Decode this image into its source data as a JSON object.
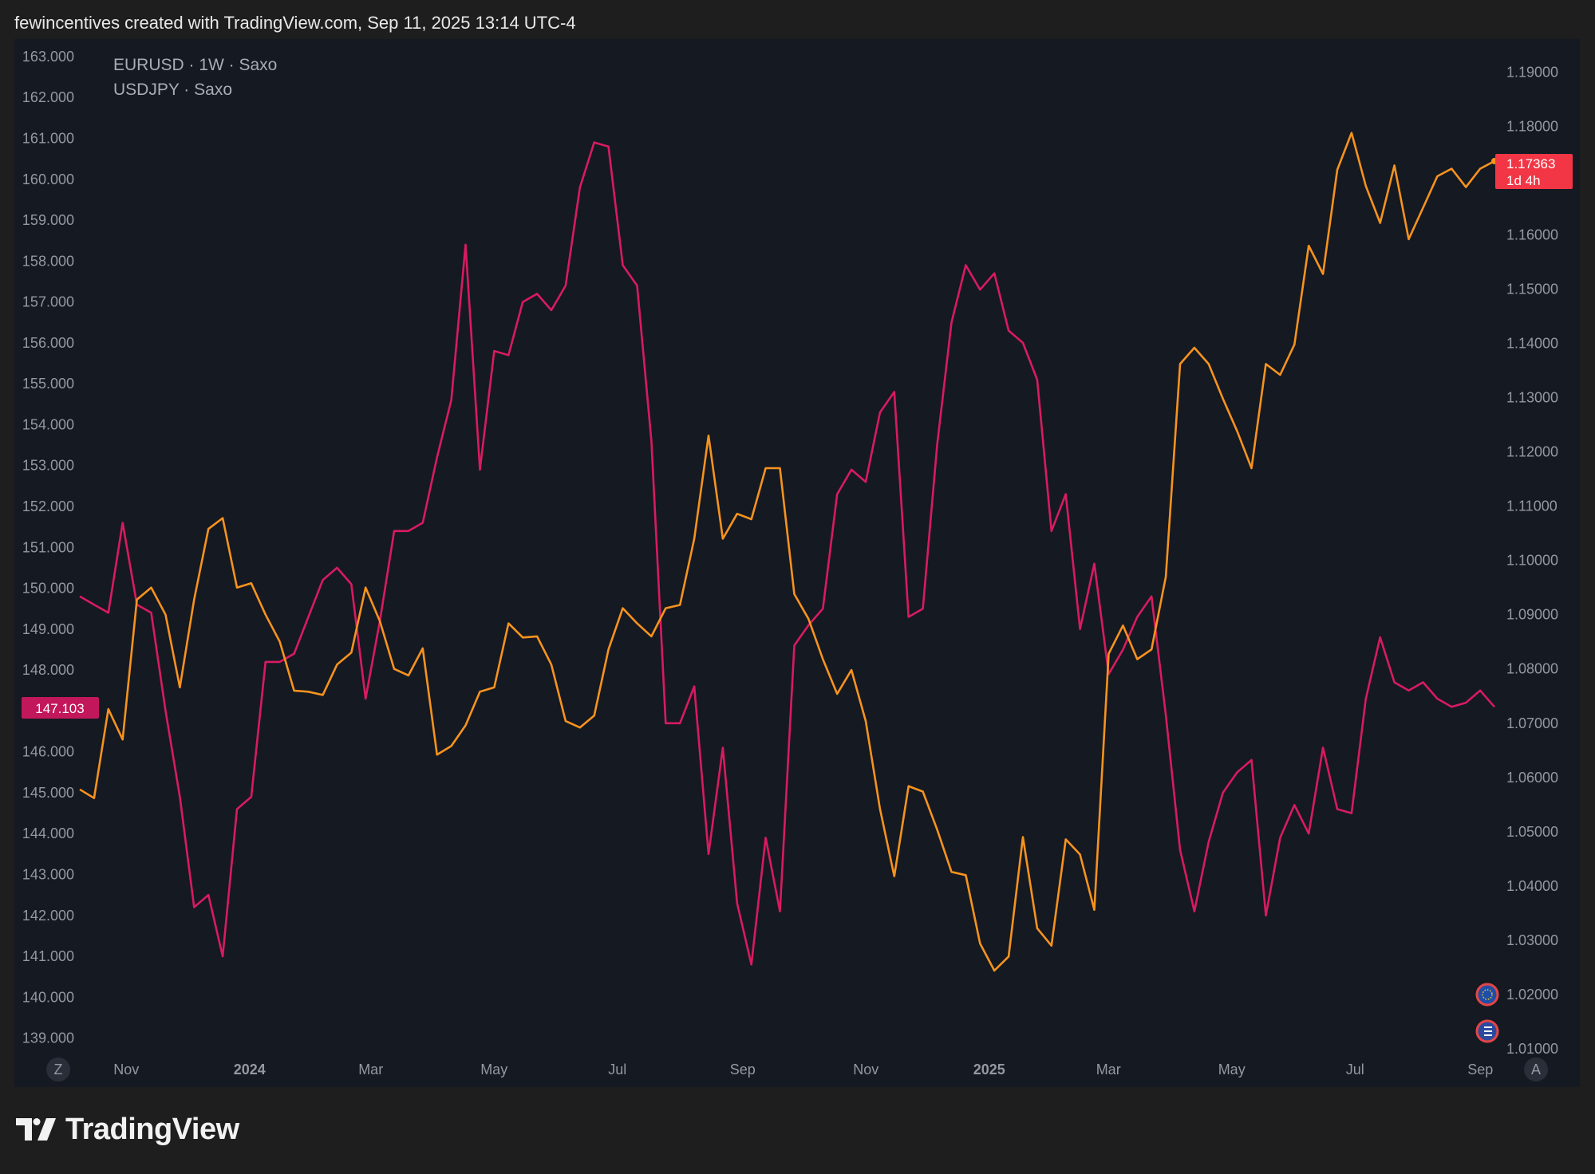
{
  "header": {
    "watermark_text": "fewincentives created with TradingView.com, Sep 11, 2025 13:14 UTC-4"
  },
  "brand": {
    "name": "TradingView",
    "icon": "tradingview-logo-icon"
  },
  "legend": {
    "line1": "EURUSD · 1W · Saxo",
    "line2": "USDJPY · Saxo"
  },
  "buttons": {
    "left_scale": "Z",
    "auto_scale": "A"
  },
  "price_tags": {
    "usdjpy": "147.103",
    "eurusd_price": "1.17363",
    "eurusd_countdown": "1d 4h"
  },
  "colors": {
    "eurusd": "#f7931e",
    "usdjpy": "#d81b60",
    "eurusd_tag": "#f23645",
    "usdjpy_tag": "#c2185b",
    "background": "#151922",
    "axis_text": "#9598a1"
  },
  "chart_data": {
    "type": "line",
    "x_labels": [
      "Nov",
      "2024",
      "Mar",
      "May",
      "Jul",
      "Sep",
      "Nov",
      "2025",
      "Mar",
      "May",
      "Jul",
      "Sep"
    ],
    "x_labels_bold": [
      false,
      true,
      false,
      false,
      false,
      false,
      false,
      true,
      false,
      false,
      false,
      false
    ],
    "x_label_dates": [
      "2023-11-01",
      "2024-01-01",
      "2024-03-01",
      "2024-05-01",
      "2024-07-01",
      "2024-09-01",
      "2024-11-01",
      "2025-01-01",
      "2025-03-01",
      "2025-05-01",
      "2025-07-01",
      "2025-09-01"
    ],
    "x_range": [
      "2023-10-09",
      "2025-09-08"
    ],
    "left_axis": {
      "ticks": [
        "163.000",
        "162.000",
        "161.000",
        "160.000",
        "159.000",
        "158.000",
        "157.000",
        "156.000",
        "155.000",
        "154.000",
        "153.000",
        "152.000",
        "151.000",
        "150.000",
        "149.000",
        "148.000",
        "146.000",
        "145.000",
        "144.000",
        "143.000",
        "142.000",
        "141.000",
        "140.000",
        "139.000"
      ],
      "range": [
        138.7,
        163.35
      ]
    },
    "right_axis": {
      "ticks": [
        "1.19000",
        "1.18000",
        "1.16000",
        "1.15000",
        "1.14000",
        "1.13000",
        "1.12000",
        "1.11000",
        "1.10000",
        "1.09000",
        "1.08000",
        "1.07000",
        "1.06000",
        "1.05000",
        "1.04000",
        "1.03000",
        "1.02000",
        "1.01000"
      ],
      "range": [
        1.0097,
        1.1955
      ]
    },
    "series": [
      {
        "name": "USDJPY",
        "axis": "left",
        "values": [
          149.8,
          149.6,
          149.4,
          151.6,
          149.6,
          149.4,
          147.0,
          144.9,
          142.2,
          142.5,
          141.0,
          144.6,
          144.9,
          148.2,
          148.2,
          148.4,
          149.3,
          150.2,
          150.5,
          150.1,
          147.3,
          149.2,
          151.4,
          151.4,
          151.6,
          153.2,
          154.6,
          158.4,
          152.9,
          155.8,
          155.7,
          157.0,
          157.2,
          156.8,
          157.4,
          159.8,
          160.9,
          160.8,
          157.9,
          157.4,
          153.6,
          146.7,
          146.7,
          147.6,
          143.5,
          146.1,
          142.3,
          140.8,
          143.9,
          142.1,
          148.6,
          149.1,
          149.5,
          152.3,
          152.9,
          152.6,
          154.3,
          154.8,
          149.3,
          149.5,
          153.5,
          156.5,
          157.9,
          157.3,
          157.7,
          156.3,
          156.0,
          155.1,
          151.4,
          152.3,
          149.0,
          150.6,
          147.9,
          148.5,
          149.3,
          149.8,
          146.9,
          143.6,
          142.1,
          143.8,
          145.0,
          145.5,
          145.8,
          142.0,
          143.9,
          144.7,
          144.0,
          146.1,
          144.6,
          144.5,
          147.3,
          148.8,
          147.7,
          147.5,
          147.7,
          147.3,
          147.1,
          147.2,
          147.5,
          147.1
        ]
      },
      {
        "name": "EURUSD",
        "axis": "right",
        "values": [
          1.0578,
          1.0562,
          1.0726,
          1.067,
          1.0928,
          1.095,
          1.09,
          1.0766,
          1.0928,
          1.1058,
          1.1078,
          1.095,
          1.0958,
          1.09,
          1.085,
          1.076,
          1.0758,
          1.0752,
          1.0808,
          1.083,
          1.095,
          1.0888,
          1.08,
          1.0788,
          1.0838,
          1.0642,
          1.0658,
          1.0696,
          1.0758,
          1.0766,
          1.0884,
          1.0858,
          1.086,
          1.0808,
          1.0704,
          1.0692,
          1.0714,
          1.0836,
          1.0912,
          1.0884,
          1.086,
          1.0912,
          1.0918,
          1.104,
          1.123,
          1.104,
          1.1086,
          1.1076,
          1.117,
          1.117,
          1.0938,
          1.0892,
          1.0818,
          1.0754,
          1.0798,
          1.0704,
          1.0542,
          1.0418,
          1.0584,
          1.0574,
          1.0504,
          1.0426,
          1.042,
          1.0294,
          1.0244,
          1.027,
          1.049,
          1.0322,
          1.029,
          1.0486,
          1.0458,
          1.0356,
          1.0828,
          1.088,
          1.0818,
          1.0836,
          1.097,
          1.1362,
          1.1392,
          1.1362,
          1.1298,
          1.1238,
          1.117,
          1.1362,
          1.1342,
          1.1398,
          1.158,
          1.1528,
          1.172,
          1.1788,
          1.169,
          1.1622,
          1.1728,
          1.1592,
          1.165,
          1.1708,
          1.1722,
          1.1688,
          1.1722,
          1.1736
        ]
      }
    ]
  }
}
